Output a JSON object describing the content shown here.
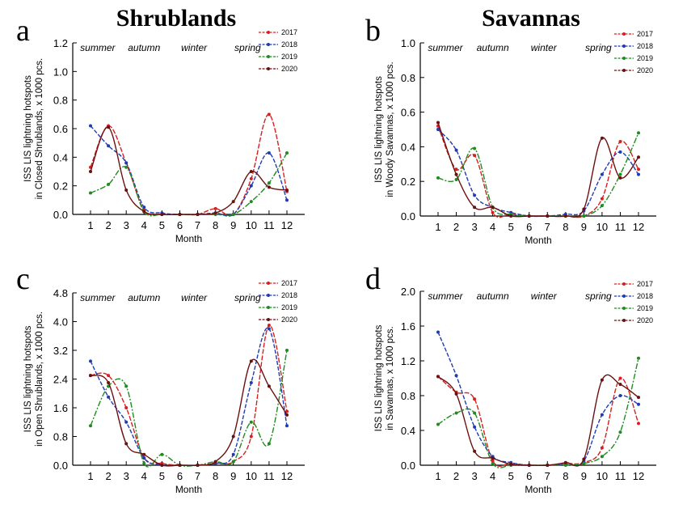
{
  "chart_data": [
    {
      "type": "line",
      "panel_letter": "a",
      "title": "Shrublands",
      "xlabel": "Month",
      "ylabel": [
        "ISS LIS lightning hotspots",
        "in Closed Shrublands, x 1000 pcs."
      ],
      "categories": [
        1,
        2,
        3,
        4,
        5,
        6,
        7,
        8,
        9,
        10,
        11,
        12
      ],
      "x_ticks": [
        "1",
        "2",
        "3",
        "4",
        "5",
        "6",
        "7",
        "8",
        "9",
        "10",
        "11",
        "12"
      ],
      "ylim": [
        0,
        1.2
      ],
      "y_ticks": [
        "0.0",
        "0.2",
        "0.4",
        "0.6",
        "0.8",
        "1.0",
        "1.2"
      ],
      "seasons": [
        "summer",
        "autumn",
        "winter",
        "spring"
      ],
      "legend_position": "top-right",
      "series": [
        {
          "name": "2017",
          "color": "#d62020",
          "values": [
            0.33,
            0.62,
            0.36,
            0.03,
            0.0,
            0.0,
            0.0,
            0.04,
            0.0,
            0.25,
            0.7,
            0.16
          ]
        },
        {
          "name": "2018",
          "color": "#1f3bb3",
          "values": [
            0.62,
            0.48,
            0.36,
            0.05,
            0.01,
            0.0,
            0.0,
            0.01,
            0.0,
            0.2,
            0.43,
            0.1
          ]
        },
        {
          "name": "2019",
          "color": "#1e8c1e",
          "values": [
            0.15,
            0.21,
            0.33,
            0.02,
            0.0,
            0.0,
            0.0,
            0.0,
            0.0,
            0.09,
            0.22,
            0.43
          ]
        },
        {
          "name": "2020",
          "color": "#6b1010",
          "values": [
            0.3,
            0.61,
            0.17,
            0.02,
            0.0,
            0.0,
            0.0,
            0.01,
            0.09,
            0.3,
            0.19,
            0.17
          ]
        }
      ]
    },
    {
      "type": "line",
      "panel_letter": "b",
      "title": "Savannas",
      "xlabel": "Month",
      "ylabel": [
        "ISS LIS lightning hotspots",
        "in Woody Savannas, x 1000 pcs."
      ],
      "categories": [
        1,
        2,
        3,
        4,
        5,
        6,
        7,
        8,
        9,
        10,
        11,
        12
      ],
      "x_ticks": [
        "1",
        "2",
        "3",
        "4",
        "5",
        "6",
        "7",
        "8",
        "9",
        "10",
        "11",
        "12"
      ],
      "ylim": [
        0,
        1.0
      ],
      "y_ticks": [
        "0.0",
        "0.2",
        "0.4",
        "0.6",
        "0.8",
        "1.0"
      ],
      "seasons": [
        "summer",
        "autumn",
        "winter",
        "spring"
      ],
      "legend_position": "top-right",
      "series": [
        {
          "name": "2017",
          "color": "#d62020",
          "values": [
            0.52,
            0.27,
            0.35,
            0.02,
            0.01,
            0.0,
            0.0,
            0.0,
            0.0,
            0.1,
            0.43,
            0.27
          ]
        },
        {
          "name": "2018",
          "color": "#1f3bb3",
          "values": [
            0.5,
            0.38,
            0.12,
            0.05,
            0.02,
            0.0,
            0.0,
            0.01,
            0.03,
            0.24,
            0.37,
            0.24
          ]
        },
        {
          "name": "2019",
          "color": "#1e8c1e",
          "values": [
            0.22,
            0.21,
            0.39,
            0.05,
            0.01,
            0.0,
            0.0,
            0.0,
            0.0,
            0.06,
            0.24,
            0.48
          ]
        },
        {
          "name": "2020",
          "color": "#6b1010",
          "values": [
            0.54,
            0.24,
            0.05,
            0.05,
            0.0,
            0.0,
            0.0,
            0.0,
            0.04,
            0.45,
            0.22,
            0.34
          ]
        }
      ]
    },
    {
      "type": "line",
      "panel_letter": "c",
      "title": "",
      "xlabel": "Month",
      "ylabel": [
        "ISS LIS lightning hotspots",
        "in Open Shrublands, x 1000 pcs."
      ],
      "categories": [
        1,
        2,
        3,
        4,
        5,
        6,
        7,
        8,
        9,
        10,
        11,
        12
      ],
      "x_ticks": [
        "1",
        "2",
        "3",
        "4",
        "5",
        "6",
        "7",
        "8",
        "9",
        "10",
        "11",
        "12"
      ],
      "ylim": [
        0,
        4.8
      ],
      "y_ticks": [
        "0.0",
        "0.8",
        "1.6",
        "2.4",
        "3.2",
        "4.0",
        "4.8"
      ],
      "seasons": [
        "summer",
        "autumn",
        "winter",
        "spring"
      ],
      "legend_position": "top-right",
      "series": [
        {
          "name": "2017",
          "color": "#d62020",
          "values": [
            2.5,
            2.5,
            1.6,
            0.2,
            0.05,
            0.0,
            0.0,
            0.05,
            0.1,
            0.8,
            3.9,
            1.5
          ]
        },
        {
          "name": "2018",
          "color": "#1f3bb3",
          "values": [
            2.9,
            1.9,
            1.2,
            0.2,
            0.0,
            0.0,
            0.0,
            0.05,
            0.3,
            2.3,
            3.8,
            1.1
          ]
        },
        {
          "name": "2019",
          "color": "#1e8c1e",
          "values": [
            1.1,
            2.2,
            2.2,
            0.05,
            0.3,
            0.0,
            0.0,
            0.1,
            0.1,
            1.2,
            0.6,
            3.2
          ]
        },
        {
          "name": "2020",
          "color": "#6b1010",
          "values": [
            2.5,
            2.3,
            0.6,
            0.3,
            0.0,
            0.0,
            0.0,
            0.1,
            0.8,
            2.9,
            2.2,
            1.4
          ]
        }
      ]
    },
    {
      "type": "line",
      "panel_letter": "d",
      "title": "",
      "xlabel": "Month",
      "ylabel": [
        "ISS LIS lightning hotspots",
        "in Savannas, x 1000 pcs."
      ],
      "categories": [
        1,
        2,
        3,
        4,
        5,
        6,
        7,
        8,
        9,
        10,
        11,
        12
      ],
      "x_ticks": [
        "1",
        "2",
        "3",
        "4",
        "5",
        "6",
        "7",
        "8",
        "9",
        "10",
        "11",
        "12"
      ],
      "ylim": [
        0,
        2.0
      ],
      "y_ticks": [
        "0.0",
        "0.4",
        "0.8",
        "1.2",
        "1.6",
        "2.0"
      ],
      "seasons": [
        "summer",
        "autumn",
        "winter",
        "spring"
      ],
      "legend_position": "top-right",
      "series": [
        {
          "name": "2017",
          "color": "#d62020",
          "values": [
            1.02,
            0.84,
            0.76,
            0.05,
            0.02,
            0.0,
            0.0,
            0.02,
            0.03,
            0.2,
            1.0,
            0.48
          ]
        },
        {
          "name": "2018",
          "color": "#1f3bb3",
          "values": [
            1.53,
            1.03,
            0.44,
            0.1,
            0.03,
            0.0,
            0.0,
            0.01,
            0.05,
            0.58,
            0.8,
            0.7
          ]
        },
        {
          "name": "2019",
          "color": "#1e8c1e",
          "values": [
            0.47,
            0.6,
            0.6,
            0.02,
            0.0,
            0.0,
            0.0,
            0.0,
            0.02,
            0.1,
            0.38,
            1.23
          ]
        },
        {
          "name": "2020",
          "color": "#6b1010",
          "values": [
            1.02,
            0.82,
            0.16,
            0.08,
            0.01,
            0.0,
            0.0,
            0.03,
            0.07,
            0.98,
            0.93,
            0.78
          ]
        }
      ]
    }
  ]
}
